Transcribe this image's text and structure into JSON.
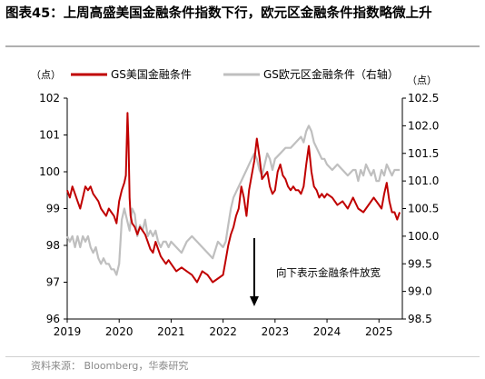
{
  "title": {
    "label": "图表45：",
    "text": "上周高盛美国金融条件指数下行，欧元区金融条件指数略微上升"
  },
  "source": "资料来源：  Bloomberg，华泰研究",
  "colors": {
    "us": "#c00000",
    "eu": "#bfbfbf"
  },
  "chart_data": {
    "type": "line",
    "units": {
      "left": "（点）",
      "right": "（点）"
    },
    "x_ticks": [
      "2019",
      "2020",
      "2021",
      "2022",
      "2023",
      "2024",
      "2025"
    ],
    "xlim": [
      2019.0,
      2025.45
    ],
    "y_left": {
      "ticks": [
        "96",
        "97",
        "98",
        "99",
        "100",
        "101",
        "102"
      ],
      "lim": [
        96,
        102
      ]
    },
    "y_right": {
      "ticks": [
        "98.5",
        "99.0",
        "99.5",
        "100.0",
        "100.5",
        "101.0",
        "101.5",
        "102.0",
        "102.5"
      ],
      "lim": [
        98.5,
        102.5
      ]
    },
    "legend": [
      "GS美国金融条件",
      "GS欧元区金融条件（右轴）"
    ],
    "annotation": "向下表示金融条件放宽",
    "series": [
      {
        "name": "GS美国金融条件",
        "axis": "left",
        "x": [
          2019.0,
          2019.05,
          2019.1,
          2019.15,
          2019.2,
          2019.25,
          2019.3,
          2019.35,
          2019.4,
          2019.45,
          2019.5,
          2019.55,
          2019.6,
          2019.65,
          2019.7,
          2019.75,
          2019.8,
          2019.85,
          2019.9,
          2019.95,
          2020.0,
          2020.05,
          2020.1,
          2020.13,
          2020.16,
          2020.18,
          2020.2,
          2020.22,
          2020.25,
          2020.3,
          2020.35,
          2020.4,
          2020.45,
          2020.5,
          2020.55,
          2020.6,
          2020.65,
          2020.7,
          2020.75,
          2020.8,
          2020.85,
          2020.9,
          2020.95,
          2021.0,
          2021.1,
          2021.2,
          2021.3,
          2021.4,
          2021.5,
          2021.6,
          2021.7,
          2021.8,
          2021.9,
          2022.0,
          2022.05,
          2022.1,
          2022.15,
          2022.2,
          2022.25,
          2022.3,
          2022.35,
          2022.4,
          2022.45,
          2022.5,
          2022.55,
          2022.6,
          2022.65,
          2022.7,
          2022.75,
          2022.8,
          2022.85,
          2022.9,
          2022.95,
          2023.0,
          2023.05,
          2023.1,
          2023.15,
          2023.2,
          2023.25,
          2023.3,
          2023.35,
          2023.4,
          2023.45,
          2023.5,
          2023.55,
          2023.6,
          2023.65,
          2023.7,
          2023.75,
          2023.8,
          2023.85,
          2023.9,
          2023.95,
          2024.0,
          2024.1,
          2024.2,
          2024.3,
          2024.4,
          2024.5,
          2024.6,
          2024.7,
          2024.8,
          2024.9,
          2025.0,
          2025.05,
          2025.1,
          2025.15,
          2025.2,
          2025.25,
          2025.3,
          2025.35,
          2025.4
        ],
        "values": [
          99.5,
          99.3,
          99.6,
          99.4,
          99.2,
          99.0,
          99.3,
          99.6,
          99.5,
          99.6,
          99.4,
          99.3,
          99.2,
          99.0,
          98.9,
          98.8,
          99.0,
          98.9,
          98.8,
          98.6,
          99.2,
          99.5,
          99.7,
          99.9,
          101.6,
          100.8,
          99.3,
          98.8,
          98.6,
          98.5,
          98.3,
          98.5,
          98.4,
          98.3,
          98.1,
          97.9,
          97.8,
          98.1,
          97.9,
          97.7,
          97.6,
          97.5,
          97.6,
          97.5,
          97.3,
          97.4,
          97.3,
          97.2,
          97.0,
          97.3,
          97.2,
          97.0,
          97.1,
          97.2,
          97.6,
          98.0,
          98.3,
          98.5,
          98.8,
          99.0,
          99.6,
          99.3,
          98.8,
          99.5,
          99.9,
          100.3,
          100.9,
          100.4,
          99.8,
          99.9,
          100.0,
          99.6,
          99.4,
          99.5,
          100.0,
          100.2,
          99.9,
          99.8,
          99.6,
          99.5,
          99.6,
          99.5,
          99.5,
          99.4,
          99.6,
          100.2,
          100.7,
          100.0,
          99.6,
          99.5,
          99.3,
          99.4,
          99.3,
          99.4,
          99.3,
          99.1,
          99.2,
          99.0,
          99.3,
          99.0,
          98.9,
          99.1,
          99.3,
          99.1,
          99.0,
          99.4,
          99.7,
          99.2,
          98.9,
          98.9,
          98.7,
          98.9
        ]
      },
      {
        "name": "GS欧元区金融条件（右轴）",
        "axis": "right",
        "x": [
          2019.0,
          2019.05,
          2019.1,
          2019.15,
          2019.2,
          2019.25,
          2019.3,
          2019.35,
          2019.4,
          2019.45,
          2019.5,
          2019.55,
          2019.6,
          2019.65,
          2019.7,
          2019.75,
          2019.8,
          2019.85,
          2019.9,
          2019.95,
          2020.0,
          2020.05,
          2020.1,
          2020.15,
          2020.2,
          2020.25,
          2020.3,
          2020.35,
          2020.4,
          2020.45,
          2020.5,
          2020.55,
          2020.6,
          2020.65,
          2020.7,
          2020.75,
          2020.8,
          2020.85,
          2020.9,
          2020.95,
          2021.0,
          2021.1,
          2021.2,
          2021.3,
          2021.4,
          2021.5,
          2021.6,
          2021.7,
          2021.8,
          2021.9,
          2022.0,
          2022.05,
          2022.1,
          2022.15,
          2022.2,
          2022.25,
          2022.3,
          2022.35,
          2022.4,
          2022.45,
          2022.5,
          2022.55,
          2022.6,
          2022.65,
          2022.7,
          2022.75,
          2022.8,
          2022.85,
          2022.9,
          2022.95,
          2023.0,
          2023.1,
          2023.2,
          2023.3,
          2023.4,
          2023.5,
          2023.55,
          2023.6,
          2023.65,
          2023.7,
          2023.75,
          2023.8,
          2023.85,
          2023.9,
          2023.95,
          2024.0,
          2024.1,
          2024.2,
          2024.3,
          2024.4,
          2024.5,
          2024.55,
          2024.6,
          2024.65,
          2024.7,
          2024.75,
          2024.8,
          2024.85,
          2024.9,
          2024.95,
          2025.0,
          2025.05,
          2025.1,
          2025.15,
          2025.2,
          2025.25,
          2025.3,
          2025.35,
          2025.4
        ],
        "values": [
          100.0,
          99.9,
          100.0,
          99.8,
          100.0,
          99.8,
          100.0,
          99.9,
          100.0,
          99.8,
          99.7,
          99.8,
          99.6,
          99.5,
          99.6,
          99.5,
          99.5,
          99.4,
          99.4,
          99.3,
          99.5,
          100.3,
          100.5,
          100.3,
          100.1,
          100.5,
          100.4,
          100.0,
          100.2,
          100.1,
          100.3,
          100.0,
          100.1,
          100.0,
          100.1,
          99.9,
          99.8,
          99.9,
          99.9,
          99.8,
          99.9,
          99.8,
          99.7,
          99.9,
          100.0,
          99.9,
          99.8,
          99.7,
          99.6,
          99.9,
          99.8,
          99.9,
          100.2,
          100.5,
          100.7,
          100.8,
          100.9,
          101.0,
          101.1,
          101.2,
          101.3,
          101.4,
          101.5,
          101.4,
          101.2,
          101.1,
          101.3,
          101.5,
          101.4,
          101.2,
          101.4,
          101.5,
          101.6,
          101.6,
          101.7,
          101.8,
          101.7,
          101.9,
          102.0,
          101.9,
          101.7,
          101.6,
          101.5,
          101.4,
          101.4,
          101.3,
          101.2,
          101.3,
          101.2,
          101.1,
          101.2,
          101.2,
          101.0,
          101.2,
          101.1,
          101.3,
          101.2,
          101.1,
          101.2,
          101.0,
          101.0,
          101.2,
          101.1,
          101.3,
          101.2,
          101.1,
          101.2,
          101.2,
          101.2
        ]
      }
    ]
  }
}
